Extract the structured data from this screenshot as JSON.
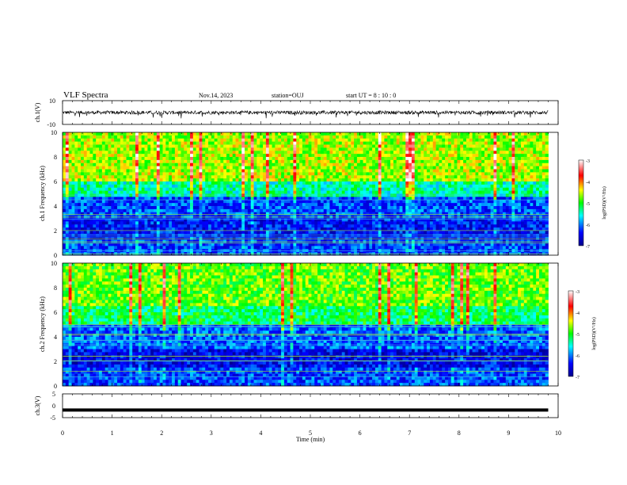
{
  "header": {
    "title": "VLF Spectra",
    "date": "Nov.14, 2023",
    "station": "station=OUJ",
    "start": "start  UT =  8 : 10 : 0"
  },
  "chart_data": [
    {
      "type": "line",
      "panel": "ch1-waveform",
      "ylabel": "ch.1(V)",
      "ylim": [
        -10,
        10
      ],
      "yticks": [
        "10",
        "-10"
      ],
      "xlim": [
        0,
        10
      ],
      "description_values": {
        "baseline": 0,
        "typical_amplitude": 1.5
      }
    },
    {
      "type": "heatmap",
      "panel": "ch1-spectrogram",
      "ylabel": "ch.1 Frequency (kHz)",
      "ylim": [
        0,
        10
      ],
      "yticks": [
        "10",
        "8",
        "6",
        "4",
        "2",
        "0"
      ],
      "xlim": [
        0,
        10
      ],
      "colorbar": {
        "label": "log(PSD)(V²/Hz)",
        "range": [
          -7,
          -3
        ],
        "ticks": [
          "-3",
          "-4",
          "-5",
          "-6",
          "-7"
        ]
      },
      "bands": [
        {
          "f": [
            6.0,
            10.0
          ],
          "level": -4.6
        },
        {
          "f": [
            4.8,
            6.0
          ],
          "level": -5.4
        },
        {
          "f": [
            3.0,
            4.8
          ],
          "level": -6.2
        },
        {
          "f": [
            1.2,
            3.0
          ],
          "level": -6.4
        },
        {
          "f": [
            0.0,
            1.2
          ],
          "level": -6.2
        }
      ],
      "end_time": 9.8
    },
    {
      "type": "heatmap",
      "panel": "ch2-spectrogram",
      "ylabel": "ch.2 Frequency (kHz)",
      "ylim": [
        0,
        10
      ],
      "yticks": [
        "10",
        "8",
        "6",
        "4",
        "2",
        "0"
      ],
      "xlim": [
        0,
        10
      ],
      "colorbar": {
        "label": "log(PSD)(V²/Hz)",
        "range": [
          -7,
          -3
        ],
        "ticks": [
          "-3",
          "-4",
          "-5",
          "-6",
          "-7"
        ]
      },
      "bands": [
        {
          "f": [
            6.5,
            10.0
          ],
          "level": -4.8
        },
        {
          "f": [
            5.0,
            6.5
          ],
          "level": -5.2
        },
        {
          "f": [
            3.0,
            5.0
          ],
          "level": -6.1
        },
        {
          "f": [
            1.5,
            3.0
          ],
          "level": -6.5
        },
        {
          "f": [
            0.0,
            1.5
          ],
          "level": -6.2
        }
      ],
      "end_time": 9.8
    },
    {
      "type": "line",
      "panel": "ch3-waveform",
      "ylabel": "ch.3(V)",
      "ylim": [
        -5,
        5
      ],
      "yticks": [
        "5",
        "0",
        "-5"
      ],
      "xlim": [
        0,
        10
      ],
      "xlabel": "Time (min)",
      "xticks": [
        "0",
        "1",
        "2",
        "3",
        "4",
        "5",
        "6",
        "7",
        "8",
        "9",
        "10"
      ],
      "constant_value": -1.8,
      "end_time": 9.8
    }
  ],
  "colors": {
    "colormap": [
      "#00008b",
      "#0000ff",
      "#00ffff",
      "#00ff00",
      "#ffff00",
      "#ff0000",
      "#ffffff"
    ]
  }
}
